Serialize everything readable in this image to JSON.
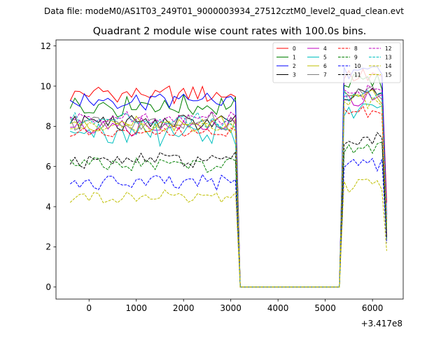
{
  "figure": {
    "suptitle": "Data file: modeM0/AS1T03_249T01_9000003934_27512cztM0_level2_quad_clean.evt"
  },
  "chart_data": {
    "type": "line",
    "title": "Quadrant 2 module wise count rates with 100.0s bins.",
    "xlabel": "",
    "ylabel": "",
    "x_offset_label": "+3.417e8",
    "xlim": [
      -700,
      6650
    ],
    "ylim": [
      -0.6,
      12.3
    ],
    "xticks": [
      0,
      1000,
      2000,
      3000,
      4000,
      5000,
      6000
    ],
    "yticks": [
      0,
      2,
      4,
      6,
      8,
      10,
      12
    ],
    "grid": false,
    "legend": {
      "position": "top-right",
      "columns": 4
    },
    "segments": {
      "first_x_start": -400,
      "gap_x_start": 3200,
      "gap_x_end": 5300,
      "second_x_start": 5300,
      "second_x_end": 6300,
      "bin_width": 100
    },
    "series": [
      {
        "name": "0",
        "color": "#ff0000",
        "style": "solid",
        "base1": 9.6,
        "amp1": 0.35,
        "base2": 10.5,
        "end": 4.2
      },
      {
        "name": "1",
        "color": "#008000",
        "style": "solid",
        "base1": 9.0,
        "amp1": 0.4,
        "base2": 10.2,
        "end": 3.3
      },
      {
        "name": "2",
        "color": "#0000ff",
        "style": "solid",
        "base1": 9.3,
        "amp1": 0.35,
        "base2": 10.6,
        "end": 3.6
      },
      {
        "name": "3",
        "color": "#000000",
        "style": "solid",
        "base1": 8.2,
        "amp1": 0.35,
        "base2": 9.6,
        "end": 3.0
      },
      {
        "name": "4",
        "color": "#bf00bf",
        "style": "solid",
        "base1": 8.0,
        "amp1": 0.35,
        "base2": 9.4,
        "end": 3.2
      },
      {
        "name": "5",
        "color": "#00bfbf",
        "style": "solid",
        "base1": 7.6,
        "amp1": 0.5,
        "base2": 8.8,
        "end": 2.8
      },
      {
        "name": "6",
        "color": "#bfbf00",
        "style": "solid",
        "base1": 8.1,
        "amp1": 0.3,
        "base2": 9.5,
        "end": 3.1
      },
      {
        "name": "7",
        "color": "#808080",
        "style": "solid",
        "base1": 8.2,
        "amp1": 0.35,
        "base2": 9.6,
        "end": 3.4
      },
      {
        "name": "8",
        "color": "#ff0000",
        "style": "dashed",
        "base1": 7.7,
        "amp1": 0.2,
        "base2": 8.7,
        "end": 2.6
      },
      {
        "name": "9",
        "color": "#008000",
        "style": "dashed",
        "base1": 6.1,
        "amp1": 0.3,
        "base2": 7.0,
        "end": 2.4
      },
      {
        "name": "10",
        "color": "#0000ff",
        "style": "dashed",
        "base1": 5.2,
        "amp1": 0.3,
        "base2": 6.0,
        "end": 2.2
      },
      {
        "name": "11",
        "color": "#000000",
        "style": "dashed",
        "base1": 6.3,
        "amp1": 0.3,
        "base2": 7.3,
        "end": 2.5
      },
      {
        "name": "12",
        "color": "#bf00bf",
        "style": "dashed",
        "base1": 8.4,
        "amp1": 0.3,
        "base2": 9.7,
        "end": 3.3
      },
      {
        "name": "13",
        "color": "#00bfbf",
        "style": "dashed",
        "base1": 8.3,
        "amp1": 0.3,
        "base2": 9.6,
        "end": 3.0
      },
      {
        "name": "14",
        "color": "#bfbf00",
        "style": "dashed",
        "base1": 4.5,
        "amp1": 0.25,
        "base2": 5.1,
        "end": 1.8
      },
      {
        "name": "15",
        "color": "#bfbf00",
        "style": "dashed",
        "base1": 8.0,
        "amp1": 0.25,
        "base2": 9.2,
        "end": 2.9
      }
    ]
  }
}
